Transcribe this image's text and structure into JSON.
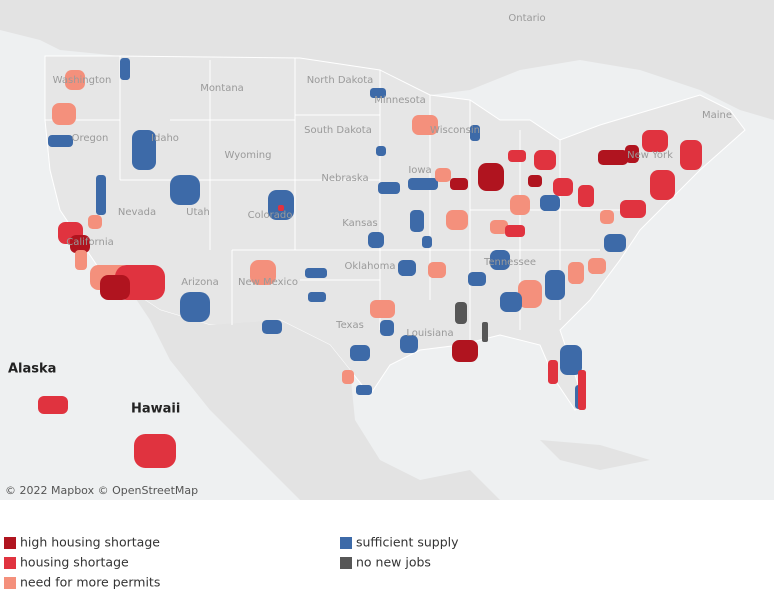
{
  "map": {
    "labels": [
      "Ontario",
      "Washington",
      "Montana",
      "North Dakota",
      "Minnesota",
      "Oregon",
      "Idaho",
      "South Dakota",
      "Wisconsin",
      "Wyoming",
      "Nebraska",
      "Iowa",
      "Nevada",
      "Utah",
      "Colorado",
      "Kansas",
      "California",
      "Arizona",
      "New Mexico",
      "Oklahoma",
      "Tennessee",
      "Texas",
      "Louisiana",
      "New York",
      "Maine"
    ],
    "insets": [
      "Alaska",
      "Hawaii"
    ],
    "attribution": "© 2022 Mapbox © OpenStreetMap"
  },
  "legend": [
    {
      "label": "high housing shortage",
      "color": "#b0141f"
    },
    {
      "label": "housing shortage",
      "color": "#e0333f"
    },
    {
      "label": "need for more permits",
      "color": "#f4907c"
    },
    {
      "label": "sufficient supply",
      "color": "#3d6aa8"
    },
    {
      "label": "no new jobs",
      "color": "#575757"
    }
  ]
}
